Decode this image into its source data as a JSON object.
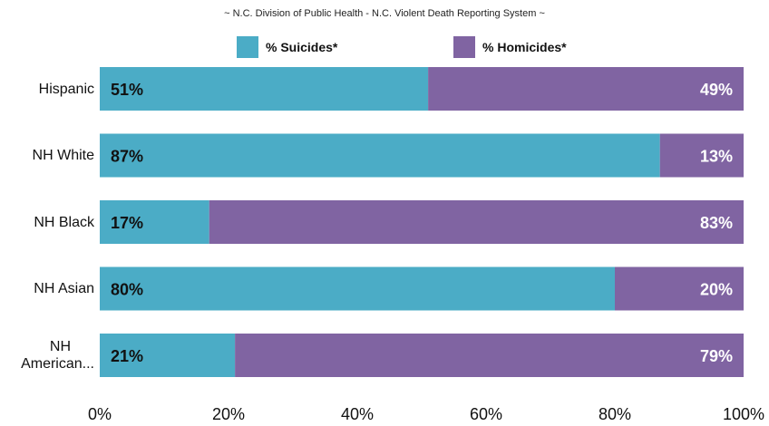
{
  "chart_data": {
    "type": "bar",
    "orientation": "horizontal",
    "stacked": true,
    "percent_stacked": true,
    "title": "",
    "subtitle": "~ N.C. Division of Public Health - N.C. Violent Death Reporting System ~",
    "categories": [
      "Hispanic",
      "NH White",
      "NH Black",
      "NH Asian",
      "NH American..."
    ],
    "category_lines": [
      [
        "Hispanic"
      ],
      [
        "NH White"
      ],
      [
        "NH Black"
      ],
      [
        "NH Asian"
      ],
      [
        "NH",
        "American..."
      ]
    ],
    "series": [
      {
        "name": "% Suicides*",
        "values": [
          51,
          87,
          17,
          80,
          21
        ],
        "labels": [
          "51%",
          "87%",
          "17%",
          "80%",
          "21%"
        ],
        "color": "#4bacc6"
      },
      {
        "name": "% Homicides*",
        "values": [
          49,
          13,
          83,
          20,
          79
        ],
        "labels": [
          "49%",
          "13%",
          "83%",
          "20%",
          "79%"
        ],
        "color": "#8064a2"
      }
    ],
    "xlim": [
      0,
      100
    ],
    "xticks": [
      "0%",
      "20%",
      "40%",
      "60%",
      "80%",
      "100%"
    ],
    "grid": false,
    "legend_position": "top",
    "label_colors": {
      "suicides": "#111111",
      "homicides": "#ffffff"
    }
  }
}
